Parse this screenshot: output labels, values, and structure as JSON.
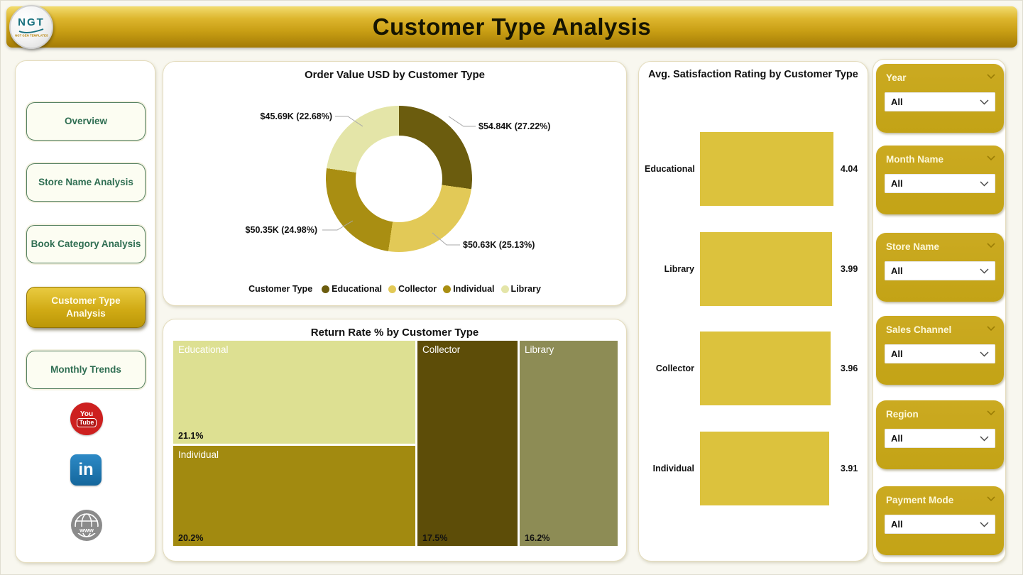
{
  "header": {
    "title": "Customer Type Analysis",
    "logo": {
      "text": "NGT",
      "subtext": "NGT GEN TEMPLATES"
    }
  },
  "sidebar": {
    "items": [
      {
        "label": "Overview",
        "active": false
      },
      {
        "label": "Store Name Analysis",
        "active": false
      },
      {
        "label": "Book Category Analysis",
        "active": false
      },
      {
        "label": "Customer Type Analysis",
        "active": true
      },
      {
        "label": "Monthly Trends",
        "active": false
      }
    ],
    "social": {
      "youtube": {
        "line1": "You",
        "line2": "Tube",
        "color": "#cd201f"
      },
      "linkedin": {
        "text": "in",
        "color": "#1d76ae"
      },
      "website": {
        "text": "www",
        "color": "#8b8b8b"
      }
    }
  },
  "filters": [
    {
      "label": "Year",
      "value": "All"
    },
    {
      "label": "Month Name",
      "value": "All"
    },
    {
      "label": "Store Name",
      "value": "All"
    },
    {
      "label": "Sales Channel",
      "value": "All"
    },
    {
      "label": "Region",
      "value": "All"
    },
    {
      "label": "Payment Mode",
      "value": "All"
    }
  ],
  "chart_data": [
    {
      "type": "pie",
      "subtype": "donut",
      "title": "Order Value USD by Customer Type",
      "legend_title": "Customer Type",
      "legend_position": "bottom",
      "series": [
        {
          "name": "Educational",
          "value_usd_k": 54.84,
          "percent": 27.22,
          "label": "$54.84K (27.22%)",
          "color": "#6b5c0e"
        },
        {
          "name": "Collector",
          "value_usd_k": 50.63,
          "percent": 25.13,
          "label": "$50.63K (25.13%)",
          "color": "#e2c957"
        },
        {
          "name": "Individual",
          "value_usd_k": 50.35,
          "percent": 24.98,
          "label": "$50.35K (24.98%)",
          "color": "#a98e12"
        },
        {
          "name": "Library",
          "value_usd_k": 45.69,
          "percent": 22.68,
          "label": "$45.69K (22.68%)",
          "color": "#e4e5a8"
        }
      ]
    },
    {
      "type": "heatmap",
      "subtype": "treemap",
      "title": "Return Rate % by Customer Type",
      "items": [
        {
          "name": "Educational",
          "value": 21.1,
          "label": "21.1%",
          "color": "#dde092"
        },
        {
          "name": "Individual",
          "value": 20.2,
          "label": "20.2%",
          "color": "#a28a10"
        },
        {
          "name": "Collector",
          "value": 17.5,
          "label": "17.5%",
          "color": "#5d4d08"
        },
        {
          "name": "Library",
          "value": 16.2,
          "label": "16.2%",
          "color": "#8d8c55"
        }
      ]
    },
    {
      "type": "bar",
      "orientation": "horizontal",
      "title": "Avg. Satisfaction Rating by Customer Type",
      "categories": [
        "Educational",
        "Library",
        "Collector",
        "Individual"
      ],
      "values": [
        4.04,
        3.99,
        3.96,
        3.91
      ],
      "xlim": [
        0,
        4.04
      ],
      "bar_color": "#dcc23d",
      "grid": false
    }
  ]
}
